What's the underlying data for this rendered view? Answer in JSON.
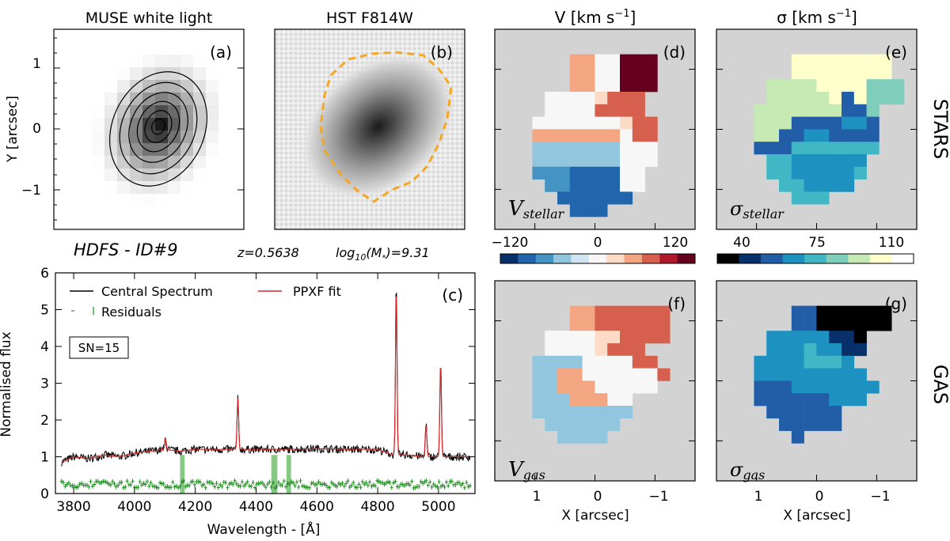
{
  "colors": {
    "panel_bg": "#d3d3d3",
    "spectrum": "#000000",
    "fit": "#d62728",
    "residuals": "#1a8a1a",
    "mask": "#66bb66",
    "contour_b": "#f5a623"
  },
  "panel_a": {
    "title": "MUSE white light",
    "letter": "(a)",
    "ylabel": "Y [arcsec]",
    "yticks": [
      "1",
      "0",
      "−1"
    ]
  },
  "panel_b": {
    "title": "HST F814W",
    "letter": "(b)"
  },
  "info": {
    "name": "HDFS - ID#9",
    "redshift": "z=0.5638",
    "mass_prefix": "log",
    "mass_sub": "10",
    "mass_mid": "(M",
    "mass_star": "*",
    "mass_suffix": ")=9.31"
  },
  "velocity": {
    "title": "V [km s",
    "title_sup": "−1",
    "title_close": "]",
    "letters": [
      "(d)",
      "(f)"
    ],
    "label_stars": "V",
    "label_stars_sub": "stellar",
    "label_gas": "V",
    "label_gas_sub": "gas",
    "colorbar_ticks": [
      "−120",
      "0",
      "120"
    ],
    "colorbar_range": [
      -150,
      150
    ],
    "colorbar_colors": [
      "#08306b",
      "#2166ac",
      "#4393c3",
      "#92c5de",
      "#d1e5f0",
      "#f7f7f7",
      "#fddbc7",
      "#f4a582",
      "#d6604d",
      "#b2182b",
      "#67001f"
    ]
  },
  "dispersion": {
    "title": "σ [km s",
    "title_sup": "−1",
    "title_close": "]",
    "letters": [
      "(e)",
      "(g)"
    ],
    "label_stars": "σ",
    "label_stars_sub": "stellar",
    "label_gas": "σ",
    "label_gas_sub": "gas",
    "colorbar_ticks": [
      "40",
      "75",
      "110"
    ],
    "colorbar_range": [
      30,
      130
    ],
    "colorbar_colors": [
      "#000000",
      "#08306b",
      "#225ea8",
      "#1d91c0",
      "#41b6c4",
      "#7fcdbb",
      "#c7e9b4",
      "#ffffcc",
      "#ffffff"
    ]
  },
  "row_labels": [
    "STARS",
    "GAS"
  ],
  "map_xlabel": "X [arcsec]",
  "map_xticks": [
    "1",
    "0",
    "−1"
  ],
  "chart_data": {
    "type": "line",
    "title": "(c)",
    "xlabel": "Wavelength - [Å]",
    "ylabel": "Normalised flux",
    "xlim": [
      3740,
      5120
    ],
    "ylim": [
      0,
      6
    ],
    "xticks": [
      3800,
      4000,
      4200,
      4400,
      4600,
      4800,
      5000
    ],
    "yticks": [
      0,
      1,
      2,
      3,
      4,
      5,
      6
    ],
    "sn_label": "SN=15",
    "legend": [
      "Central Spectrum",
      "Residuals",
      "PPXF fit"
    ],
    "continuum": [
      [
        3760,
        0.85
      ],
      [
        3800,
        1.0
      ],
      [
        3850,
        0.95
      ],
      [
        3900,
        1.05
      ],
      [
        3950,
        1.0
      ],
      [
        4000,
        1.1
      ],
      [
        4050,
        1.15
      ],
      [
        4100,
        1.2
      ],
      [
        4150,
        1.15
      ],
      [
        4200,
        1.2
      ],
      [
        4300,
        1.2
      ],
      [
        4400,
        1.2
      ],
      [
        4500,
        1.2
      ],
      [
        4600,
        1.22
      ],
      [
        4700,
        1.2
      ],
      [
        4800,
        1.2
      ],
      [
        4850,
        1.05
      ],
      [
        4900,
        1.05
      ],
      [
        4950,
        1.0
      ],
      [
        5000,
        1.0
      ],
      [
        5100,
        1.0
      ]
    ],
    "emission_lines": [
      {
        "wavelength": 4340,
        "peak": 2.6
      },
      {
        "wavelength": 4861,
        "peak": 5.7
      },
      {
        "wavelength": 4959,
        "peak": 1.9
      },
      {
        "wavelength": 5007,
        "peak": 3.6
      },
      {
        "wavelength": 4102,
        "peak": 1.5
      }
    ],
    "masked_regions": [
      [
        4150,
        4165
      ],
      [
        4450,
        4470
      ],
      [
        4500,
        4515
      ]
    ],
    "residual_level": 0.25
  }
}
